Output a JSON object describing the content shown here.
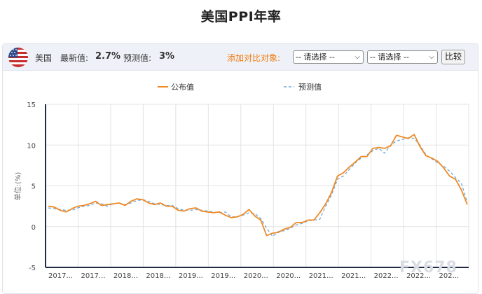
{
  "page": {
    "title": "美国PPI年率"
  },
  "toolbar": {
    "country": "美国",
    "latest_label": "最新值:",
    "latest_value": "2.7%",
    "forecast_label": "预测值:",
    "forecast_value": "3%",
    "compare_prompt": "添加对比对象:",
    "select1": "-- 请选择 --",
    "select2": "-- 请选择 --",
    "compare_button": "比较",
    "flag_icon": "us-flag-icon"
  },
  "watermark": "FX678",
  "chart_data": {
    "type": "line",
    "ylabel": "单位:(%)",
    "ylim": [
      -5,
      15
    ],
    "yticks": [
      -5,
      0,
      5,
      10,
      15
    ],
    "xticks": [
      "2017...",
      "2017...",
      "2018...",
      "2018...",
      "2019...",
      "2019...",
      "2020...",
      "2020...",
      "2021...",
      "2021...",
      "2022...",
      "2022...",
      "202..."
    ],
    "grid": true,
    "legend_position": "top",
    "colors": {
      "actual": "#f08a24",
      "forecast": "#6fa8dc"
    },
    "series": [
      {
        "name": "公布值",
        "values": [
          2.5,
          2.4,
          2.0,
          1.8,
          2.2,
          2.5,
          2.6,
          2.8,
          3.1,
          2.6,
          2.7,
          2.8,
          2.9,
          2.6,
          3.1,
          3.4,
          3.3,
          2.9,
          2.7,
          2.9,
          2.5,
          2.5,
          2.0,
          1.9,
          2.2,
          2.3,
          1.9,
          1.8,
          1.7,
          1.8,
          1.4,
          1.1,
          1.2,
          1.5,
          2.1,
          1.3,
          0.8,
          -1.1,
          -0.8,
          -0.7,
          -0.3,
          -0.1,
          0.5,
          0.5,
          0.8,
          0.8,
          1.7,
          2.8,
          4.2,
          6.2,
          6.6,
          7.3,
          7.9,
          8.6,
          8.6,
          9.6,
          9.7,
          9.6,
          9.9,
          11.2,
          11.0,
          10.8,
          11.3,
          9.8,
          8.7,
          8.4,
          8.0,
          7.2,
          6.2,
          5.8,
          4.5,
          2.7
        ]
      },
      {
        "name": "预测值",
        "values": [
          2.3,
          2.2,
          2.1,
          2.0,
          2.0,
          2.3,
          2.5,
          2.6,
          2.9,
          2.8,
          2.5,
          2.8,
          2.9,
          2.7,
          2.9,
          3.2,
          3.3,
          3.1,
          2.8,
          2.7,
          2.6,
          2.6,
          2.2,
          2.0,
          2.0,
          2.1,
          2.0,
          1.9,
          1.8,
          1.7,
          1.8,
          1.2,
          1.2,
          1.4,
          1.7,
          1.6,
          1.0,
          -0.2,
          -1.2,
          -0.6,
          -0.5,
          -0.2,
          0.2,
          0.4,
          0.7,
          0.8,
          0.9,
          2.5,
          3.9,
          5.8,
          6.2,
          7.0,
          7.8,
          8.4,
          8.8,
          9.3,
          9.6,
          9.0,
          10.0,
          10.5,
          10.7,
          10.9,
          10.8,
          10.0,
          8.8,
          8.3,
          7.8,
          7.4,
          6.8,
          6.0,
          5.3,
          3.0
        ]
      }
    ]
  }
}
